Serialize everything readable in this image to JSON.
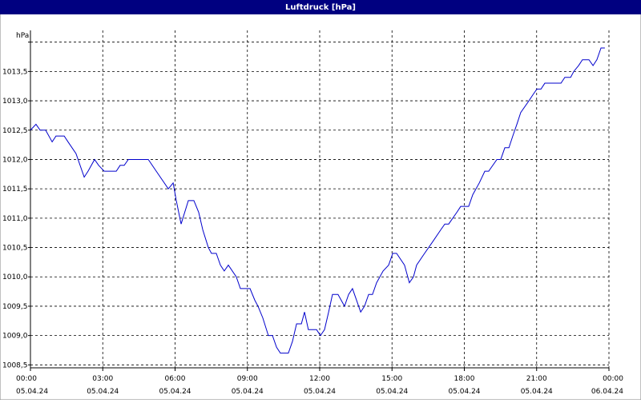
{
  "chart_data": {
    "type": "line",
    "title": "Luftdruck [hPa]",
    "y_unit": "hPa",
    "color": "#0000cc",
    "grid": true,
    "xlim": [
      0,
      24
    ],
    "ylim": [
      1008.45,
      1014.2
    ],
    "xticks": [
      {
        "value": 0,
        "label": "00:00",
        "sublabel": "05.04.24"
      },
      {
        "value": 3,
        "label": "03:00",
        "sublabel": "05.04.24"
      },
      {
        "value": 6,
        "label": "06:00",
        "sublabel": "05.04.24"
      },
      {
        "value": 9,
        "label": "09:00",
        "sublabel": "05.04.24"
      },
      {
        "value": 12,
        "label": "12:00",
        "sublabel": "05.04.24"
      },
      {
        "value": 15,
        "label": "15:00",
        "sublabel": "05.04.24"
      },
      {
        "value": 18,
        "label": "18:00",
        "sublabel": "05.04.24"
      },
      {
        "value": 21,
        "label": "21:00",
        "sublabel": "05.04.24"
      },
      {
        "value": 24,
        "label": "00:00",
        "sublabel": "06.04.24"
      }
    ],
    "yticks": [
      {
        "value": 1008.5,
        "label": "1008,5"
      },
      {
        "value": 1009,
        "label": "1009,0"
      },
      {
        "value": 1009.5,
        "label": "1009,5"
      },
      {
        "value": 1010,
        "label": "1010,0"
      },
      {
        "value": 1010.5,
        "label": "1010,5"
      },
      {
        "value": 1011,
        "label": "1011,0"
      },
      {
        "value": 1011.5,
        "label": "1011,5"
      },
      {
        "value": 1012,
        "label": "1012,0"
      },
      {
        "value": 1012.5,
        "label": "1012,5"
      },
      {
        "value": 1013,
        "label": "1013,0"
      },
      {
        "value": 1013.5,
        "label": "1013,5"
      },
      {
        "value": 1014,
        "label": null
      }
    ],
    "x": [
      0,
      0.23,
      0.4,
      0.63,
      0.9,
      1.06,
      1.4,
      1.56,
      1.89,
      2.23,
      2.39,
      2.66,
      2.83,
      3.06,
      3.56,
      3.72,
      3.89,
      4.06,
      4.89,
      5.22,
      5.72,
      5.92,
      6.05,
      6.25,
      6.55,
      6.78,
      6.98,
      7.15,
      7.38,
      7.51,
      7.71,
      7.88,
      8.04,
      8.21,
      8.54,
      8.71,
      9.11,
      9.31,
      9.44,
      9.64,
      9.87,
      10.04,
      10.21,
      10.37,
      10.7,
      10.87,
      11.04,
      11.24,
      11.37,
      11.53,
      11.87,
      12.03,
      12.2,
      12.37,
      12.53,
      12.76,
      13.03,
      13.2,
      13.36,
      13.53,
      13.7,
      13.86,
      14.03,
      14.19,
      14.36,
      14.63,
      14.86,
      15.03,
      15.19,
      15.52,
      15.72,
      15.89,
      16.02,
      16.35,
      16.69,
      17.02,
      17.19,
      17.35,
      17.69,
      17.85,
      18.18,
      18.35,
      18.62,
      18.85,
      19.01,
      19.35,
      19.51,
      19.68,
      19.85,
      20.01,
      20.18,
      20.34,
      20.68,
      20.84,
      21.01,
      21.18,
      21.34,
      22.01,
      22.17,
      22.41,
      22.54,
      22.74,
      22.9,
      23.17,
      23.34,
      23.5,
      23.67,
      23.83
    ],
    "values": [
      1012.5,
      1012.6,
      1012.5,
      1012.5,
      1012.3,
      1012.4,
      1012.4,
      1012.3,
      1012.1,
      1011.7,
      1011.8,
      1012.0,
      1011.9,
      1011.8,
      1011.8,
      1011.9,
      1011.9,
      1012.0,
      1012.0,
      1011.8,
      1011.5,
      1011.6,
      1011.3,
      1010.9,
      1011.3,
      1011.3,
      1011.1,
      1010.8,
      1010.5,
      1010.4,
      1010.4,
      1010.2,
      1010.1,
      1010.2,
      1010.0,
      1009.8,
      1009.8,
      1009.6,
      1009.5,
      1009.3,
      1009.0,
      1009.0,
      1008.8,
      1008.7,
      1008.7,
      1008.9,
      1009.2,
      1009.2,
      1009.4,
      1009.1,
      1009.1,
      1009.0,
      1009.1,
      1009.4,
      1009.7,
      1009.7,
      1009.5,
      1009.7,
      1009.8,
      1009.6,
      1009.4,
      1009.5,
      1009.7,
      1009.7,
      1009.9,
      1010.1,
      1010.2,
      1010.4,
      1010.4,
      1010.2,
      1009.9,
      1010.0,
      1010.2,
      1010.4,
      1010.6,
      1010.8,
      1010.9,
      1010.9,
      1011.1,
      1011.2,
      1011.2,
      1011.4,
      1011.6,
      1011.8,
      1011.8,
      1012.0,
      1012.0,
      1012.2,
      1012.2,
      1012.4,
      1012.6,
      1012.8,
      1013.0,
      1013.1,
      1013.2,
      1013.2,
      1013.3,
      1013.3,
      1013.4,
      1013.4,
      1013.5,
      1013.6,
      1013.7,
      1013.7,
      1013.6,
      1013.7,
      1013.9,
      1013.9
    ]
  }
}
